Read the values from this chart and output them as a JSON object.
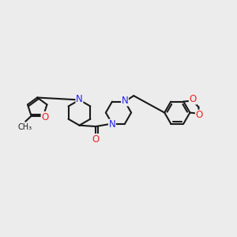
{
  "bg_color": "#ececec",
  "bond_color": "#1a1a1a",
  "N_color": "#2222ee",
  "O_color": "#ee2222",
  "lw": 1.5,
  "fs": 8.5,
  "fig_w": 3.0,
  "fig_h": 3.0,
  "dpi": 100,
  "xlim": [
    0,
    12
  ],
  "ylim": [
    0,
    10
  ]
}
